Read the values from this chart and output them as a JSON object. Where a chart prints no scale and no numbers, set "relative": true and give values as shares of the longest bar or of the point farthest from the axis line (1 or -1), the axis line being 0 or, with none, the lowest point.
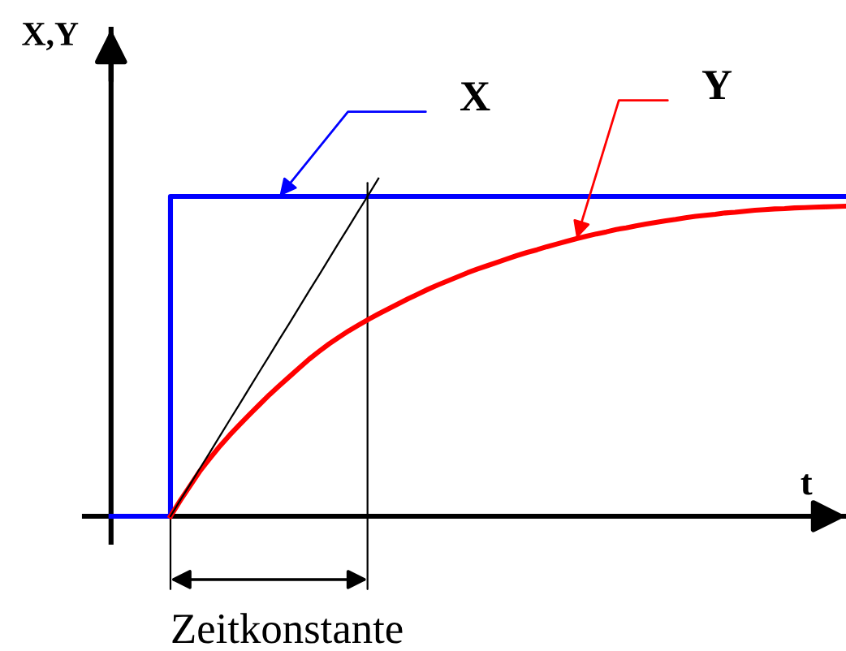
{
  "chart_data": {
    "type": "line",
    "xlabel": "t",
    "ylabel": "X,Y",
    "relative": true,
    "annotations": [
      "Zeitkonstante"
    ],
    "categories": [
      null,
      null,
      null,
      null,
      null,
      null,
      null,
      null,
      null,
      null,
      null,
      null,
      null,
      null,
      null,
      null,
      null,
      null,
      null,
      null,
      null,
      null,
      null,
      null,
      null,
      null,
      null,
      null,
      null,
      null,
      null,
      null,
      null,
      null,
      null,
      null,
      null,
      null,
      null,
      null,
      null,
      null,
      null,
      null,
      null,
      null,
      null,
      null,
      null,
      null,
      null,
      null,
      null,
      null,
      null,
      null,
      null,
      null,
      null,
      null,
      null,
      null,
      null,
      null,
      null,
      null,
      null,
      null,
      null,
      null,
      null,
      null,
      null,
      null,
      null
    ],
    "series": [
      {
        "name": "X",
        "type": "step",
        "color": "#0000ff",
        "values": [
          0,
          0,
          0,
          0,
          0,
          0,
          0.947,
          0.947,
          0.947,
          0.947,
          0.947,
          0.947,
          0.947,
          0.947,
          0.947,
          0.947,
          0.947,
          0.947,
          0.947,
          0.947,
          0.947,
          0.947,
          0.947,
          0.947,
          0.947,
          0.947,
          0.947,
          0.947,
          0.947,
          0.947,
          0.947,
          0.947,
          0.947,
          0.947,
          0.947,
          0.947,
          0.947,
          0.947,
          0.947,
          0.947,
          0.947,
          0.947,
          0.947,
          0.947,
          0.947,
          0.947,
          0.947,
          0.947,
          0.947,
          0.947,
          0.947,
          0.947,
          0.947,
          0.947,
          0.947,
          0.947,
          0.947,
          0.947,
          0.947,
          0.947,
          0.947,
          0.947,
          0.947,
          0.947,
          0.947,
          0.947,
          0.947,
          0.947,
          0.947,
          0.947,
          0.947,
          0.947,
          0.947,
          0.947,
          0.947
        ]
      },
      {
        "name": "Y",
        "color": "#ff0000",
        "values": [
          null,
          null,
          null,
          null,
          null,
          null,
          0,
          0.047,
          0.091,
          0.135,
          0.172,
          0.208,
          0.241,
          0.272,
          0.302,
          0.331,
          0.36,
          0.387,
          0.413,
          0.439,
          0.465,
          0.488,
          0.51,
          0.53,
          0.549,
          0.566,
          0.583,
          0.599,
          0.614,
          0.629,
          0.644,
          0.658,
          0.672,
          0.685,
          0.697,
          0.709,
          0.721,
          0.732,
          0.742,
          0.752,
          0.762,
          0.772,
          0.781,
          0.789,
          0.798,
          0.806,
          0.814,
          0.822,
          0.829,
          0.836,
          0.842,
          0.849,
          0.854,
          0.86,
          0.865,
          0.87,
          0.875,
          0.879,
          0.884,
          0.888,
          0.891,
          0.894,
          0.898,
          0.9,
          0.903,
          0.906,
          0.908,
          0.91,
          0.911,
          0.913,
          0.914,
          0.915,
          0.916,
          0.917,
          0.918
        ]
      },
      {
        "color": "#000000",
        "values": [
          null,
          null,
          null,
          null,
          null,
          null,
          0,
          0.048,
          0.095,
          0.143,
          0.19,
          0.238,
          0.286,
          0.333,
          0.381,
          0.429,
          0.476,
          0.524,
          0.571,
          0.619,
          0.667,
          0.714,
          0.762,
          0.81,
          0.857,
          0.905,
          0.952,
          1,
          null,
          null,
          null,
          null,
          null,
          null,
          null,
          null,
          null,
          null,
          null,
          null,
          null,
          null,
          null,
          null,
          null,
          null,
          null,
          null,
          null,
          null,
          null,
          null,
          null,
          null,
          null,
          null,
          null,
          null,
          null,
          null,
          null,
          null,
          null,
          null,
          null,
          null,
          null,
          null,
          null,
          null,
          null,
          null,
          null,
          null,
          null
        ]
      }
    ]
  }
}
